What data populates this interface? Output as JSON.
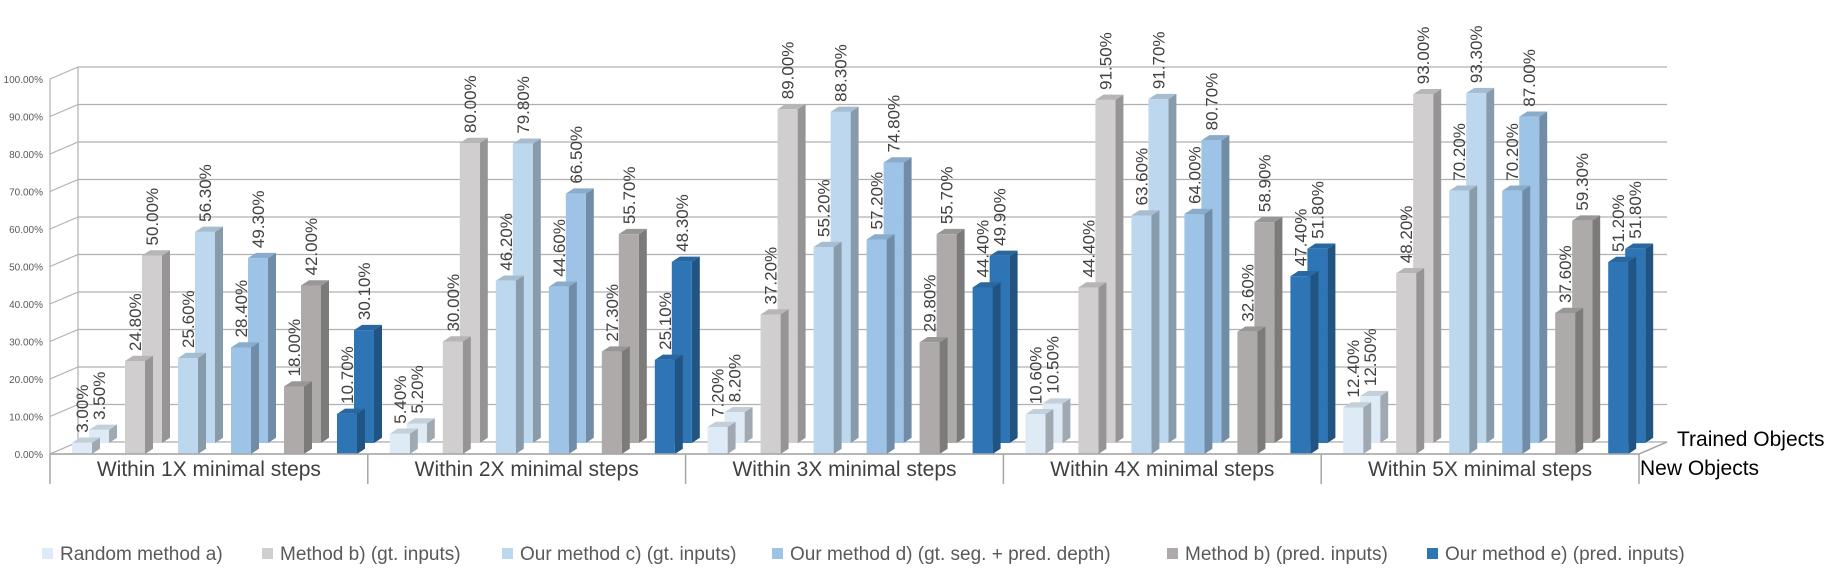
{
  "chart_data": {
    "type": "bar",
    "subtype": "3d-clustered-bar",
    "title": "",
    "xlabel": "",
    "ylabel": "",
    "ylim": [
      0,
      100
    ],
    "yticks": [
      "0.00%",
      "10.00%",
      "20.00%",
      "30.00%",
      "40.00%",
      "50.00%",
      "60.00%",
      "70.00%",
      "80.00%",
      "90.00%",
      "100.00%"
    ],
    "categories": [
      "Within 1X minimal steps",
      "Within 2X minimal steps",
      "Within 3X minimal steps",
      "Within 4X minimal steps",
      "Within 5X minimal steps"
    ],
    "depth_labels": [
      "Trained Objects",
      "New Objects"
    ],
    "legend_position": "bottom",
    "series": [
      {
        "name": "Random method a)",
        "color": "#DEEBF7",
        "new": [
          3.0,
          5.4,
          7.2,
          10.6,
          12.4
        ],
        "trained": [
          3.5,
          5.2,
          8.2,
          10.5,
          12.5
        ],
        "new_labels": [
          "3.00%",
          "5.40%",
          "7.20%",
          "10.60%",
          "12.40%"
        ],
        "trained_labels": [
          "3.50%",
          "5.20%",
          "8.20%",
          "10.50%",
          "12.50%"
        ]
      },
      {
        "name": "Method b) (gt. inputs)",
        "color": "#D0CECE",
        "new": [
          24.8,
          30.0,
          37.2,
          44.4,
          48.2
        ],
        "trained": [
          50.0,
          80.0,
          89.0,
          91.5,
          93.0
        ],
        "new_labels": [
          "24.80%",
          "30.00%",
          "37.20%",
          "44.40%",
          "48.20%"
        ],
        "trained_labels": [
          "50.00%",
          "80.00%",
          "89.00%",
          "91.50%",
          "93.00%"
        ]
      },
      {
        "name": "Our method c) (gt. inputs)",
        "color": "#BDD7EE",
        "new": [
          25.6,
          46.2,
          55.2,
          63.6,
          70.2
        ],
        "trained": [
          56.3,
          79.8,
          88.3,
          91.7,
          93.3
        ],
        "new_labels": [
          "25.60%",
          "46.20%",
          "55.20%",
          "63.60%",
          "70.20%"
        ],
        "trained_labels": [
          "56.30%",
          "79.80%",
          "88.30%",
          "91.70%",
          "93.30%"
        ]
      },
      {
        "name": "Our method d) (gt. seg. + pred. depth)",
        "color": "#9DC3E6",
        "new": [
          28.4,
          44.6,
          57.2,
          64.0,
          70.2
        ],
        "trained": [
          49.3,
          66.5,
          74.8,
          80.7,
          87.0
        ],
        "new_labels": [
          "28.40%",
          "44.60%",
          "57.20%",
          "64.00%",
          "70.20%"
        ],
        "trained_labels": [
          "49.30%",
          "66.50%",
          "74.80%",
          "80.70%",
          "87.00%"
        ]
      },
      {
        "name": "Method b) (pred. inputs)",
        "color": "#AEAAAA",
        "new": [
          18.0,
          27.3,
          29.8,
          32.6,
          37.6
        ],
        "trained": [
          42.0,
          55.7,
          55.7,
          58.9,
          59.3
        ],
        "new_labels": [
          "18.00%",
          "27.30%",
          "29.80%",
          "32.60%",
          "37.60%"
        ],
        "trained_labels": [
          "42.00%",
          "55.70%",
          "55.70%",
          "58.90%",
          "59.30%"
        ]
      },
      {
        "name": "Our method e) (pred. inputs)",
        "color": "#2E75B6",
        "new": [
          10.7,
          25.1,
          44.4,
          47.4,
          51.2
        ],
        "trained": [
          30.1,
          48.3,
          49.9,
          51.8,
          51.8
        ],
        "new_labels": [
          "10.70%",
          "25.10%",
          "44.40%",
          "47.40%",
          "51.20%"
        ],
        "trained_labels": [
          "30.10%",
          "48.30%",
          "49.90%",
          "51.80%",
          "51.80%"
        ]
      }
    ]
  }
}
